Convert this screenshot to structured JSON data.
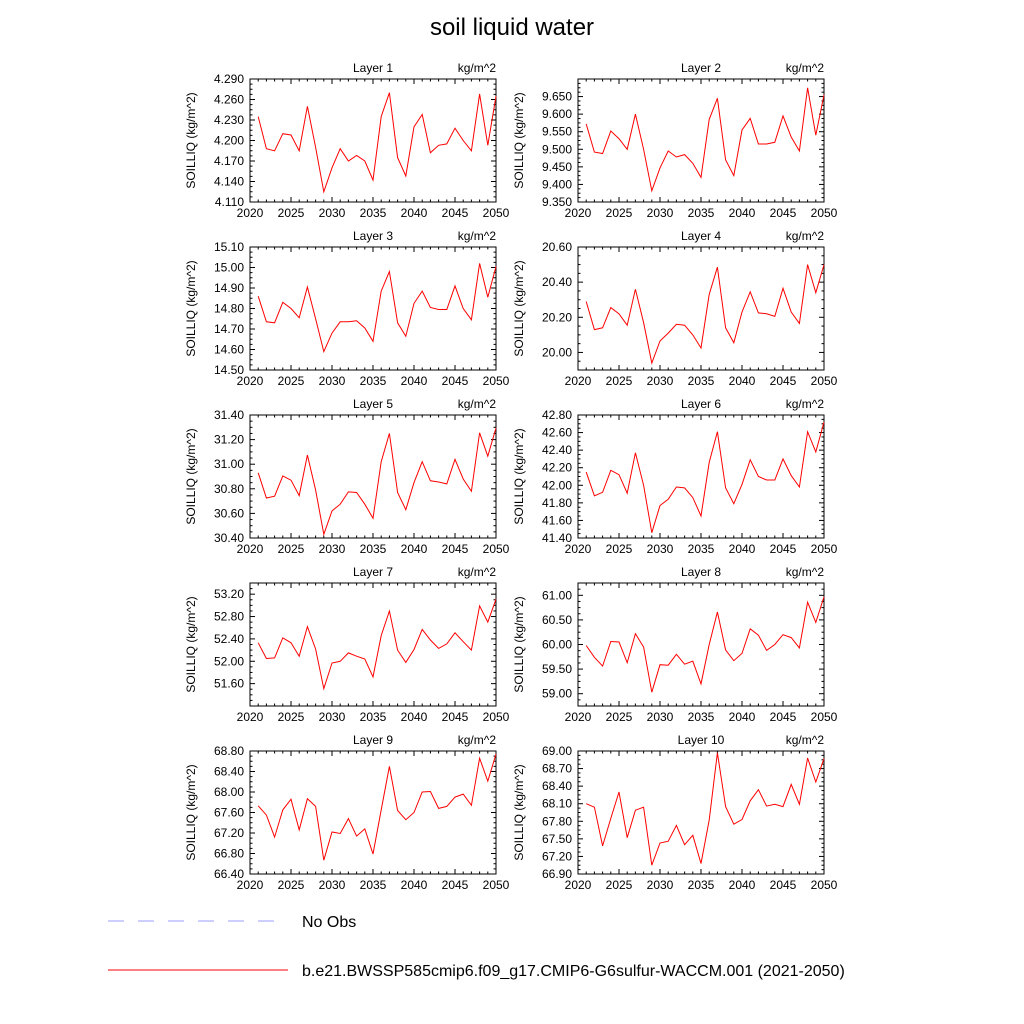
{
  "title": "soil liquid water",
  "colors": {
    "model": "#ff0000",
    "obs": "#9c9cff",
    "axis": "#000000"
  },
  "legend": [
    {
      "label": "No Obs",
      "style": "dashed",
      "color": "#9c9cff"
    },
    {
      "label": "b.e21.BWSSP585cmip6.f09_g17.CMIP6-G6sulfur-WACCM.001 (2021-2050)",
      "style": "solid",
      "color": "#ff0000"
    }
  ],
  "chart_data": [
    {
      "type": "line",
      "title": "Layer 1",
      "units": "kg/m^2",
      "ylabel": "SOILLIQ  (kg/m^2)",
      "xlim": [
        2020,
        2050
      ],
      "xticks": [
        "2020",
        "2025",
        "2030",
        "2035",
        "2040",
        "2045",
        "2050"
      ],
      "ylim": [
        4.11,
        4.29
      ],
      "yticks": [
        "4.110",
        "4.140",
        "4.170",
        "4.200",
        "4.230",
        "4.260",
        "4.290"
      ],
      "x": [
        2021,
        2022,
        2023,
        2024,
        2025,
        2026,
        2027,
        2028,
        2029,
        2030,
        2031,
        2032,
        2033,
        2034,
        2035,
        2036,
        2037,
        2038,
        2039,
        2040,
        2041,
        2042,
        2043,
        2044,
        2045,
        2046,
        2047,
        2048,
        2049,
        2050
      ],
      "series": [
        {
          "name": "b.e21.BWSSP585cmip6.f09_g17.CMIP6-G6sulfur-WACCM.001 (2021-2050)",
          "values": [
            4.235,
            4.188,
            4.185,
            4.21,
            4.208,
            4.185,
            4.25,
            4.19,
            4.125,
            4.16,
            4.188,
            4.17,
            4.178,
            4.17,
            4.142,
            4.235,
            4.27,
            4.175,
            4.148,
            4.22,
            4.238,
            4.182,
            4.193,
            4.195,
            4.218,
            4.2,
            4.185,
            4.268,
            4.193,
            4.265
          ]
        }
      ]
    },
    {
      "type": "line",
      "title": "Layer 2",
      "units": "kg/m^2",
      "ylabel": "SOILLIQ  (kg/m^2)",
      "xlim": [
        2020,
        2050
      ],
      "xticks": [
        "2020",
        "2025",
        "2030",
        "2035",
        "2040",
        "2045",
        "2050"
      ],
      "ylim": [
        9.35,
        9.7
      ],
      "yticks": [
        "9.350",
        "9.400",
        "9.450",
        "9.500",
        "9.550",
        "9.600",
        "9.650"
      ],
      "x": [
        2021,
        2022,
        2023,
        2024,
        2025,
        2026,
        2027,
        2028,
        2029,
        2030,
        2031,
        2032,
        2033,
        2034,
        2035,
        2036,
        2037,
        2038,
        2039,
        2040,
        2041,
        2042,
        2043,
        2044,
        2045,
        2046,
        2047,
        2048,
        2049,
        2050
      ],
      "series": [
        {
          "name": "b.e21.BWSSP585cmip6.f09_g17.CMIP6-G6sulfur-WACCM.001 (2021-2050)",
          "values": [
            9.572,
            9.492,
            9.488,
            9.552,
            9.53,
            9.5,
            9.6,
            9.5,
            9.382,
            9.447,
            9.495,
            9.478,
            9.485,
            9.46,
            9.42,
            9.585,
            9.645,
            9.47,
            9.425,
            9.555,
            9.588,
            9.515,
            9.515,
            9.52,
            9.595,
            9.535,
            9.495,
            9.675,
            9.54,
            9.655
          ]
        }
      ]
    },
    {
      "type": "line",
      "title": "Layer 3",
      "units": "kg/m^2",
      "ylabel": "SOILLIQ  (kg/m^2)",
      "xlim": [
        2020,
        2050
      ],
      "xticks": [
        "2020",
        "2025",
        "2030",
        "2035",
        "2040",
        "2045",
        "2050"
      ],
      "ylim": [
        14.5,
        15.1
      ],
      "yticks": [
        "14.50",
        "14.60",
        "14.70",
        "14.80",
        "14.90",
        "15.00",
        "15.10"
      ],
      "x": [
        2021,
        2022,
        2023,
        2024,
        2025,
        2026,
        2027,
        2028,
        2029,
        2030,
        2031,
        2032,
        2033,
        2034,
        2035,
        2036,
        2037,
        2038,
        2039,
        2040,
        2041,
        2042,
        2043,
        2044,
        2045,
        2046,
        2047,
        2048,
        2049,
        2050
      ],
      "series": [
        {
          "name": "b.e21.BWSSP585cmip6.f09_g17.CMIP6-G6sulfur-WACCM.001 (2021-2050)",
          "values": [
            14.86,
            14.735,
            14.73,
            14.83,
            14.8,
            14.755,
            14.905,
            14.75,
            14.59,
            14.68,
            14.735,
            14.735,
            14.74,
            14.705,
            14.64,
            14.885,
            14.98,
            14.73,
            14.665,
            14.825,
            14.885,
            14.805,
            14.795,
            14.795,
            14.91,
            14.8,
            14.745,
            15.02,
            14.855,
            15.005
          ]
        }
      ]
    },
    {
      "type": "line",
      "title": "Layer 4",
      "units": "kg/m^2",
      "ylabel": "SOILLIQ  (kg/m^2)",
      "xlim": [
        2020,
        2050
      ],
      "xticks": [
        "2020",
        "2025",
        "2030",
        "2035",
        "2040",
        "2045",
        "2050"
      ],
      "ylim": [
        19.9,
        20.6
      ],
      "yticks": [
        "20.00",
        "20.20",
        "20.40",
        "20.60"
      ],
      "x": [
        2021,
        2022,
        2023,
        2024,
        2025,
        2026,
        2027,
        2028,
        2029,
        2030,
        2031,
        2032,
        2033,
        2034,
        2035,
        2036,
        2037,
        2038,
        2039,
        2040,
        2041,
        2042,
        2043,
        2044,
        2045,
        2046,
        2047,
        2048,
        2049,
        2050
      ],
      "series": [
        {
          "name": "b.e21.BWSSP585cmip6.f09_g17.CMIP6-G6sulfur-WACCM.001 (2021-2050)",
          "values": [
            20.29,
            20.13,
            20.14,
            20.255,
            20.22,
            20.155,
            20.36,
            20.17,
            19.94,
            20.065,
            20.11,
            20.16,
            20.155,
            20.1,
            20.025,
            20.33,
            20.485,
            20.14,
            20.055,
            20.23,
            20.345,
            20.225,
            20.22,
            20.205,
            20.365,
            20.23,
            20.165,
            20.5,
            20.34,
            20.5
          ]
        }
      ]
    },
    {
      "type": "line",
      "title": "Layer 5",
      "units": "kg/m^2",
      "ylabel": "SOILLIQ  (kg/m^2)",
      "xlim": [
        2020,
        2050
      ],
      "xticks": [
        "2020",
        "2025",
        "2030",
        "2035",
        "2040",
        "2045",
        "2050"
      ],
      "ylim": [
        30.4,
        31.4
      ],
      "yticks": [
        "30.40",
        "30.60",
        "30.80",
        "31.00",
        "31.20",
        "31.40"
      ],
      "x": [
        2021,
        2022,
        2023,
        2024,
        2025,
        2026,
        2027,
        2028,
        2029,
        2030,
        2031,
        2032,
        2033,
        2034,
        2035,
        2036,
        2037,
        2038,
        2039,
        2040,
        2041,
        2042,
        2043,
        2044,
        2045,
        2046,
        2047,
        2048,
        2049,
        2050
      ],
      "series": [
        {
          "name": "b.e21.BWSSP585cmip6.f09_g17.CMIP6-G6sulfur-WACCM.001 (2021-2050)",
          "values": [
            30.93,
            30.725,
            30.74,
            30.905,
            30.87,
            30.745,
            31.075,
            30.79,
            30.43,
            30.62,
            30.675,
            30.775,
            30.77,
            30.675,
            30.56,
            31.02,
            31.25,
            30.77,
            30.63,
            30.85,
            31.02,
            30.865,
            30.855,
            30.84,
            31.04,
            30.88,
            30.78,
            31.255,
            31.065,
            31.295
          ]
        }
      ]
    },
    {
      "type": "line",
      "title": "Layer 6",
      "units": "kg/m^2",
      "ylabel": "SOILLIQ  (kg/m^2)",
      "xlim": [
        2020,
        2050
      ],
      "xticks": [
        "2020",
        "2025",
        "2030",
        "2035",
        "2040",
        "2045",
        "2050"
      ],
      "ylim": [
        41.4,
        42.8
      ],
      "yticks": [
        "41.40",
        "41.60",
        "41.80",
        "42.00",
        "42.20",
        "42.40",
        "42.60",
        "42.80"
      ],
      "x": [
        2021,
        2022,
        2023,
        2024,
        2025,
        2026,
        2027,
        2028,
        2029,
        2030,
        2031,
        2032,
        2033,
        2034,
        2035,
        2036,
        2037,
        2038,
        2039,
        2040,
        2041,
        2042,
        2043,
        2044,
        2045,
        2046,
        2047,
        2048,
        2049,
        2050
      ],
      "series": [
        {
          "name": "b.e21.BWSSP585cmip6.f09_g17.CMIP6-G6sulfur-WACCM.001 (2021-2050)",
          "values": [
            42.15,
            41.88,
            41.92,
            42.17,
            42.12,
            41.91,
            42.37,
            42.0,
            41.46,
            41.77,
            41.84,
            41.98,
            41.97,
            41.86,
            41.65,
            42.26,
            42.61,
            41.97,
            41.79,
            42.01,
            42.29,
            42.1,
            42.06,
            42.06,
            42.3,
            42.11,
            41.98,
            42.61,
            42.38,
            42.72
          ]
        }
      ]
    },
    {
      "type": "line",
      "title": "Layer 7",
      "units": "kg/m^2",
      "ylabel": "SOILLIQ  (kg/m^2)",
      "xlim": [
        2020,
        2050
      ],
      "xticks": [
        "2020",
        "2025",
        "2030",
        "2035",
        "2040",
        "2045",
        "2050"
      ],
      "ylim": [
        51.2,
        53.4
      ],
      "yticks": [
        "51.60",
        "52.00",
        "52.40",
        "52.80",
        "53.20"
      ],
      "x": [
        2021,
        2022,
        2023,
        2024,
        2025,
        2026,
        2027,
        2028,
        2029,
        2030,
        2031,
        2032,
        2033,
        2034,
        2035,
        2036,
        2037,
        2038,
        2039,
        2040,
        2041,
        2042,
        2043,
        2044,
        2045,
        2046,
        2047,
        2048,
        2049,
        2050
      ],
      "series": [
        {
          "name": "b.e21.BWSSP585cmip6.f09_g17.CMIP6-G6sulfur-WACCM.001 (2021-2050)",
          "values": [
            52.33,
            52.05,
            52.06,
            52.42,
            52.33,
            52.09,
            52.62,
            52.22,
            51.51,
            51.97,
            52.0,
            52.15,
            52.09,
            52.04,
            51.72,
            52.46,
            52.9,
            52.2,
            51.98,
            52.21,
            52.57,
            52.38,
            52.23,
            52.31,
            52.51,
            52.35,
            52.2,
            52.99,
            52.7,
            53.11
          ]
        }
      ]
    },
    {
      "type": "line",
      "title": "Layer 8",
      "units": "kg/m^2",
      "ylabel": "SOILLIQ  (kg/m^2)",
      "xlim": [
        2020,
        2050
      ],
      "xticks": [
        "2020",
        "2025",
        "2030",
        "2035",
        "2040",
        "2045",
        "2050"
      ],
      "ylim": [
        58.75,
        61.25
      ],
      "yticks": [
        "59.00",
        "59.50",
        "60.00",
        "60.50",
        "61.00"
      ],
      "x": [
        2021,
        2022,
        2023,
        2024,
        2025,
        2026,
        2027,
        2028,
        2029,
        2030,
        2031,
        2032,
        2033,
        2034,
        2035,
        2036,
        2037,
        2038,
        2039,
        2040,
        2041,
        2042,
        2043,
        2044,
        2045,
        2046,
        2047,
        2048,
        2049,
        2050
      ],
      "series": [
        {
          "name": "b.e21.BWSSP585cmip6.f09_g17.CMIP6-G6sulfur-WACCM.001 (2021-2050)",
          "values": [
            59.98,
            59.74,
            59.56,
            60.06,
            60.05,
            59.63,
            60.22,
            59.95,
            59.03,
            59.59,
            59.58,
            59.8,
            59.6,
            59.66,
            59.2,
            60.0,
            60.66,
            59.89,
            59.67,
            59.82,
            60.32,
            60.19,
            59.88,
            60.0,
            60.2,
            60.14,
            59.93,
            60.86,
            60.45,
            60.97
          ]
        }
      ]
    },
    {
      "type": "line",
      "title": "Layer 9",
      "units": "kg/m^2",
      "ylabel": "SOILLIQ  (kg/m^2)",
      "xlim": [
        2020,
        2050
      ],
      "xticks": [
        "2020",
        "2025",
        "2030",
        "2035",
        "2040",
        "2045",
        "2050"
      ],
      "ylim": [
        66.4,
        68.8
      ],
      "yticks": [
        "66.40",
        "66.80",
        "67.20",
        "67.60",
        "68.00",
        "68.40",
        "68.80"
      ],
      "x": [
        2021,
        2022,
        2023,
        2024,
        2025,
        2026,
        2027,
        2028,
        2029,
        2030,
        2031,
        2032,
        2033,
        2034,
        2035,
        2036,
        2037,
        2038,
        2039,
        2040,
        2041,
        2042,
        2043,
        2044,
        2045,
        2046,
        2047,
        2048,
        2049,
        2050
      ],
      "series": [
        {
          "name": "b.e21.BWSSP585cmip6.f09_g17.CMIP6-G6sulfur-WACCM.001 (2021-2050)",
          "values": [
            67.73,
            67.55,
            67.12,
            67.65,
            67.86,
            67.26,
            67.87,
            67.72,
            66.67,
            67.22,
            67.19,
            67.48,
            67.14,
            67.28,
            66.79,
            67.65,
            68.5,
            67.64,
            67.46,
            67.6,
            68.0,
            68.01,
            67.68,
            67.72,
            67.9,
            67.96,
            67.74,
            68.66,
            68.21,
            68.74
          ]
        }
      ]
    },
    {
      "type": "line",
      "title": "Layer 10",
      "units": "kg/m^2",
      "ylabel": "SOILLIQ  (kg/m^2)",
      "xlim": [
        2020,
        2050
      ],
      "xticks": [
        "2020",
        "2025",
        "2030",
        "2035",
        "2040",
        "2045",
        "2050"
      ],
      "ylim": [
        66.9,
        69.0
      ],
      "yticks": [
        "66.90",
        "67.20",
        "67.50",
        "67.80",
        "68.10",
        "68.40",
        "68.70",
        "69.00"
      ],
      "x": [
        2021,
        2022,
        2023,
        2024,
        2025,
        2026,
        2027,
        2028,
        2029,
        2030,
        2031,
        2032,
        2033,
        2034,
        2035,
        2036,
        2037,
        2038,
        2039,
        2040,
        2041,
        2042,
        2043,
        2044,
        2045,
        2046,
        2047,
        2048,
        2049,
        2050
      ],
      "series": [
        {
          "name": "b.e21.BWSSP585cmip6.f09_g17.CMIP6-G6sulfur-WACCM.001 (2021-2050)",
          "values": [
            68.1,
            68.04,
            67.38,
            67.85,
            68.3,
            67.52,
            67.99,
            68.04,
            67.05,
            67.43,
            67.46,
            67.73,
            67.4,
            67.56,
            67.08,
            67.82,
            68.97,
            68.05,
            67.75,
            67.83,
            68.15,
            68.34,
            68.06,
            68.09,
            68.05,
            68.43,
            68.09,
            68.88,
            68.47,
            68.87
          ]
        }
      ]
    }
  ]
}
